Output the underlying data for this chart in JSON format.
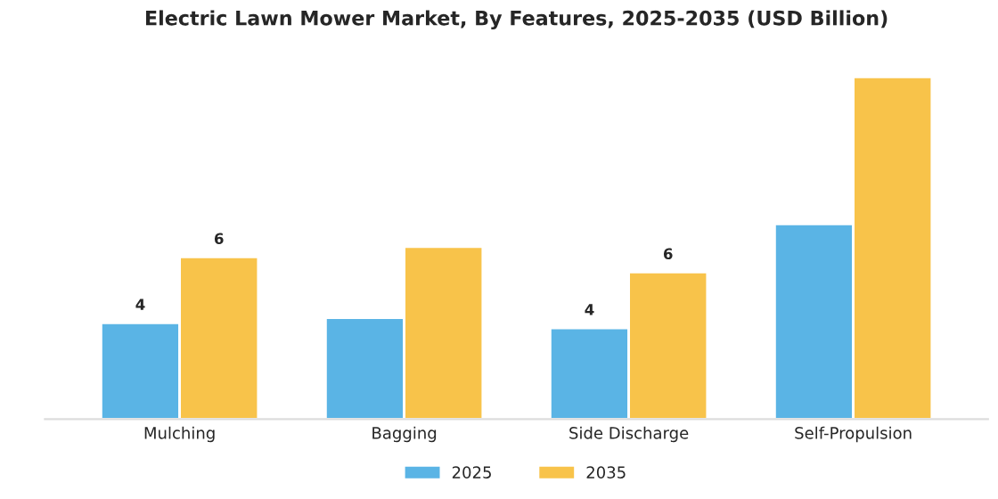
{
  "chart_data": {
    "type": "bar",
    "title": "Electric Lawn Mower Market, By Features, 2025-2035 (USD Billion)",
    "categories": [
      "Mulching",
      "Bagging",
      "Side Discharge",
      "Self-Propulsion"
    ],
    "series": [
      {
        "name": "2025",
        "color": "#5ab4e5",
        "values": [
          3.8,
          4.0,
          3.6,
          7.7
        ],
        "value_labels": [
          "4",
          null,
          "4",
          null
        ]
      },
      {
        "name": "2035",
        "color": "#f8c34a",
        "values": [
          6.4,
          6.8,
          5.8,
          13.5
        ],
        "value_labels": [
          "6",
          null,
          "6",
          null
        ]
      }
    ],
    "tick_labels": "x",
    "legend": "bottom",
    "grid": false
  }
}
